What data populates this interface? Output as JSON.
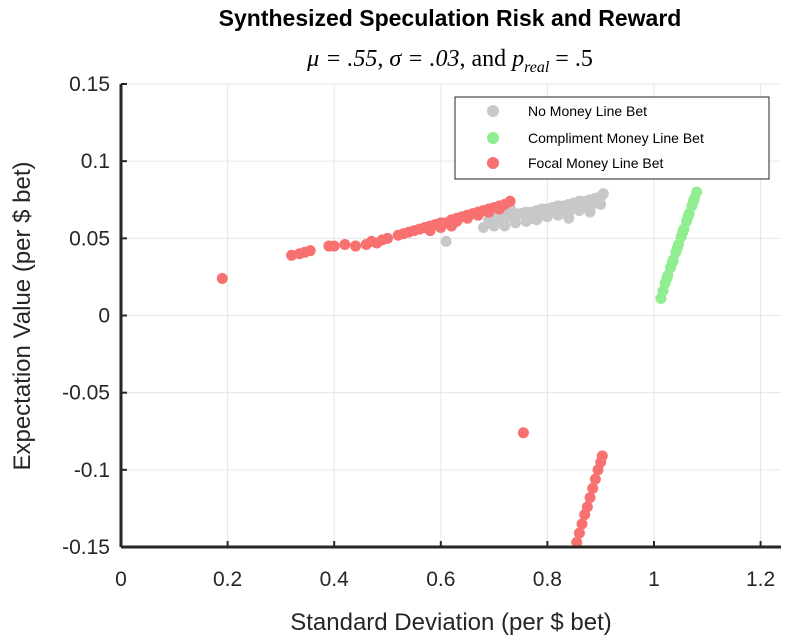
{
  "chart_data": {
    "type": "scatter",
    "title": "Synthesized Speculation Risk and Reward",
    "subtitle_parts": [
      "μ = .55",
      "σ = .03",
      "and",
      "p",
      "real",
      "= .5"
    ],
    "xlabel": "Standard Deviation (per $ bet)",
    "ylabel": "Expectation Value (per $ bet)",
    "xlim": [
      0,
      1.25
    ],
    "ylim": [
      -0.15,
      0.15
    ],
    "x_ticks": [
      0,
      0.2,
      0.4,
      0.6,
      0.8,
      1,
      1.2
    ],
    "x_tick_labels": [
      "0",
      "0.2",
      "0.4",
      "0.6",
      "0.8",
      "1",
      "1.2"
    ],
    "y_ticks": [
      0.15,
      0.1,
      0.05,
      0,
      -0.05,
      -0.1,
      -0.15
    ],
    "y_tick_labels": [
      "0.15",
      "0.1",
      "0.05",
      "0",
      "-0.05",
      "-0.1",
      "-0.15"
    ],
    "grid": true,
    "legend_position": "top-right",
    "series": [
      {
        "name": "No Money Line Bet",
        "color": "#c8c8c8",
        "points": [
          [
            0.61,
            0.048
          ],
          [
            0.68,
            0.057
          ],
          [
            0.7,
            0.058
          ],
          [
            0.72,
            0.058
          ],
          [
            0.69,
            0.062
          ],
          [
            0.71,
            0.063
          ],
          [
            0.72,
            0.065
          ],
          [
            0.73,
            0.064
          ],
          [
            0.74,
            0.066
          ],
          [
            0.75,
            0.066
          ],
          [
            0.76,
            0.067
          ],
          [
            0.77,
            0.067
          ],
          [
            0.78,
            0.068
          ],
          [
            0.79,
            0.069
          ],
          [
            0.8,
            0.069
          ],
          [
            0.81,
            0.07
          ],
          [
            0.82,
            0.071
          ],
          [
            0.83,
            0.071
          ],
          [
            0.84,
            0.072
          ],
          [
            0.85,
            0.073
          ],
          [
            0.86,
            0.074
          ],
          [
            0.87,
            0.074
          ],
          [
            0.88,
            0.075
          ],
          [
            0.89,
            0.076
          ],
          [
            0.9,
            0.077
          ],
          [
            0.905,
            0.079
          ],
          [
            0.8,
            0.064
          ],
          [
            0.82,
            0.065
          ],
          [
            0.84,
            0.066
          ],
          [
            0.86,
            0.068
          ],
          [
            0.88,
            0.07
          ],
          [
            0.9,
            0.072
          ],
          [
            0.78,
            0.062
          ],
          [
            0.76,
            0.061
          ],
          [
            0.74,
            0.06
          ],
          [
            0.83,
            0.069
          ],
          [
            0.85,
            0.07
          ],
          [
            0.87,
            0.071
          ],
          [
            0.89,
            0.073
          ],
          [
            0.81,
            0.067
          ],
          [
            0.79,
            0.065
          ],
          [
            0.77,
            0.063
          ],
          [
            0.88,
            0.067
          ],
          [
            0.84,
            0.063
          ],
          [
            0.72,
            0.068
          ],
          [
            0.7,
            0.066
          ],
          [
            0.73,
            0.07
          ],
          [
            0.875,
            0.072
          ]
        ]
      },
      {
        "name": "Compliment Money Line Bet",
        "color": "#90ee90",
        "points": [
          [
            1.013,
            0.011
          ],
          [
            1.017,
            0.016
          ],
          [
            1.021,
            0.021
          ],
          [
            1.026,
            0.026
          ],
          [
            1.031,
            0.031
          ],
          [
            1.036,
            0.036
          ],
          [
            1.041,
            0.041
          ],
          [
            1.046,
            0.046
          ],
          [
            1.051,
            0.051
          ],
          [
            1.056,
            0.056
          ],
          [
            1.061,
            0.061
          ],
          [
            1.066,
            0.066
          ],
          [
            1.071,
            0.071
          ],
          [
            1.076,
            0.076
          ],
          [
            1.08,
            0.08
          ],
          [
            1.024,
            0.024
          ],
          [
            1.034,
            0.034
          ],
          [
            1.044,
            0.044
          ],
          [
            1.054,
            0.054
          ],
          [
            1.064,
            0.064
          ],
          [
            1.074,
            0.074
          ]
        ]
      },
      {
        "name": "Focal Money Line Bet",
        "color": "#f87171",
        "points": [
          [
            0.19,
            0.024
          ],
          [
            0.32,
            0.039
          ],
          [
            0.335,
            0.04
          ],
          [
            0.345,
            0.041
          ],
          [
            0.355,
            0.042
          ],
          [
            0.39,
            0.045
          ],
          [
            0.4,
            0.045
          ],
          [
            0.42,
            0.046
          ],
          [
            0.44,
            0.045
          ],
          [
            0.46,
            0.046
          ],
          [
            0.47,
            0.048
          ],
          [
            0.48,
            0.047
          ],
          [
            0.49,
            0.049
          ],
          [
            0.5,
            0.05
          ],
          [
            0.52,
            0.052
          ],
          [
            0.53,
            0.053
          ],
          [
            0.54,
            0.054
          ],
          [
            0.55,
            0.055
          ],
          [
            0.56,
            0.056
          ],
          [
            0.57,
            0.057
          ],
          [
            0.58,
            0.058
          ],
          [
            0.59,
            0.059
          ],
          [
            0.6,
            0.06
          ],
          [
            0.61,
            0.06
          ],
          [
            0.62,
            0.062
          ],
          [
            0.63,
            0.063
          ],
          [
            0.64,
            0.064
          ],
          [
            0.65,
            0.065
          ],
          [
            0.66,
            0.066
          ],
          [
            0.67,
            0.067
          ],
          [
            0.68,
            0.068
          ],
          [
            0.69,
            0.069
          ],
          [
            0.7,
            0.07
          ],
          [
            0.71,
            0.071
          ],
          [
            0.72,
            0.072
          ],
          [
            0.73,
            0.074
          ],
          [
            0.63,
            0.061
          ],
          [
            0.65,
            0.063
          ],
          [
            0.67,
            0.065
          ],
          [
            0.69,
            0.067
          ],
          [
            0.71,
            0.069
          ],
          [
            0.6,
            0.057
          ],
          [
            0.58,
            0.055
          ],
          [
            0.62,
            0.058
          ],
          [
            0.755,
            -0.076
          ],
          [
            0.855,
            -0.147
          ],
          [
            0.86,
            -0.141
          ],
          [
            0.865,
            -0.135
          ],
          [
            0.87,
            -0.129
          ],
          [
            0.875,
            -0.124
          ],
          [
            0.88,
            -0.118
          ],
          [
            0.885,
            -0.112
          ],
          [
            0.89,
            -0.106
          ],
          [
            0.895,
            -0.1
          ],
          [
            0.9,
            -0.095
          ],
          [
            0.903,
            -0.091
          ]
        ]
      }
    ]
  }
}
